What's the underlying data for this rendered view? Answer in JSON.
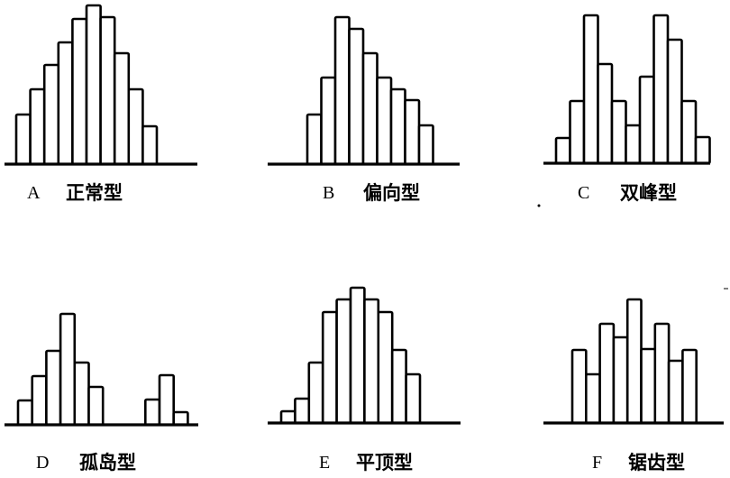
{
  "colors": {
    "bar_fill": "#ffffff",
    "stroke": "#000000"
  },
  "panels": [
    {
      "letter": "A",
      "name": "正常型",
      "values": [
        55,
        83,
        110,
        135,
        161,
        176,
        163,
        123,
        83,
        42
      ]
    },
    {
      "letter": "B",
      "name": "偏向型",
      "values": [
        55,
        96,
        163,
        150,
        123,
        96,
        83,
        71,
        43
      ]
    },
    {
      "letter": "C",
      "name": "双峰型",
      "values": [
        28,
        69,
        164,
        110,
        69,
        42,
        96,
        164,
        137,
        69,
        29
      ]
    },
    {
      "letter": "D",
      "name": "孤岛型",
      "values": [
        27,
        54,
        82,
        123,
        69,
        42,
        null,
        null,
        null,
        28,
        55,
        14
      ]
    },
    {
      "letter": "E",
      "name": "平顶型",
      "values": [
        13,
        27,
        67,
        123,
        137,
        150,
        137,
        123,
        81,
        54
      ]
    },
    {
      "letter": "F",
      "name": "锯齿型",
      "values": [
        81,
        54,
        110,
        95,
        137,
        82,
        110,
        69,
        81
      ]
    }
  ]
}
